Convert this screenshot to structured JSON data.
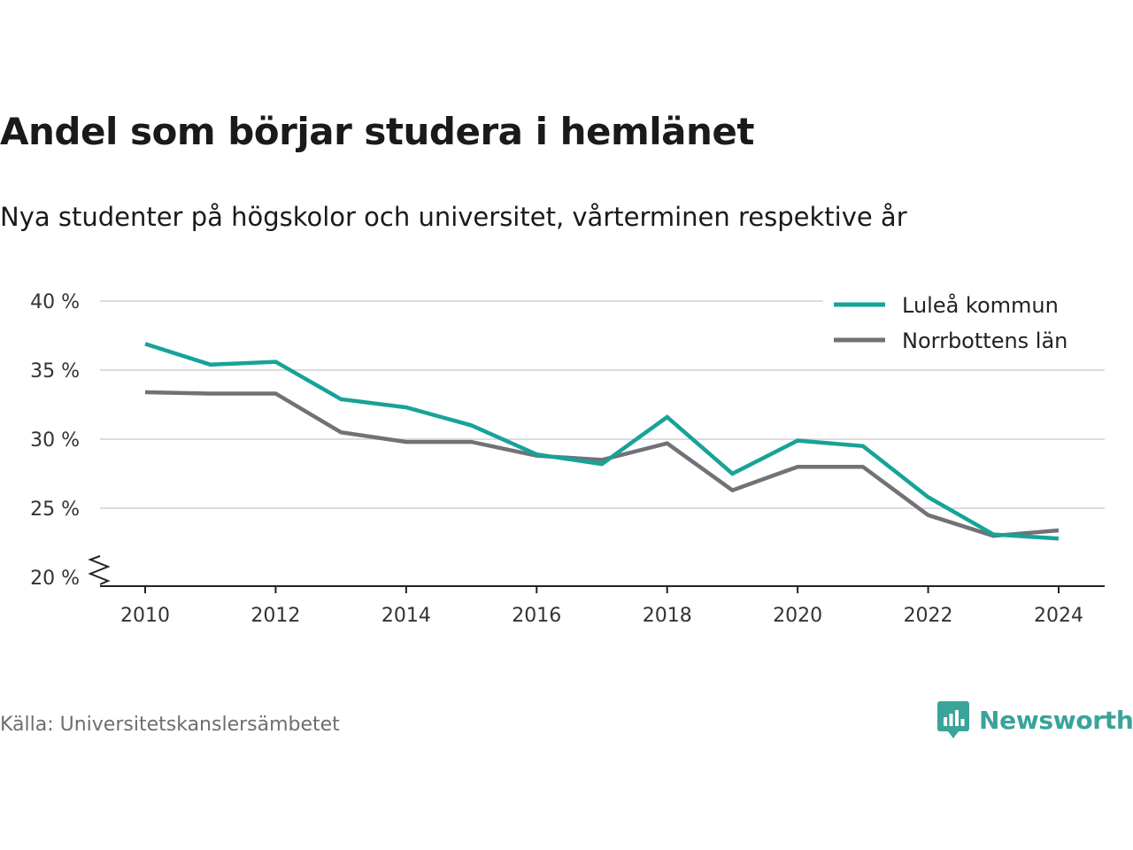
{
  "title": "Andel som börjar studera i hemlänet",
  "subtitle": "Nya studenter på högskolor och universitet, vårterminen respektive år",
  "source": "Källa: Universitetskanslersämbetet",
  "brand": {
    "name": "Newsworthy",
    "icon": "newsworthy-logo-icon",
    "color": "#3aa39a"
  },
  "chart_data": {
    "type": "line",
    "x": [
      2010,
      2011,
      2012,
      2013,
      2014,
      2015,
      2016,
      2017,
      2018,
      2019,
      2020,
      2021,
      2022,
      2023,
      2024
    ],
    "series": [
      {
        "name": "Luleå kommun",
        "color": "#17a398",
        "values": [
          36.9,
          35.4,
          35.6,
          32.9,
          32.3,
          31.0,
          28.9,
          28.2,
          31.6,
          27.5,
          29.9,
          29.5,
          25.8,
          23.1,
          22.8
        ]
      },
      {
        "name": "Norrbottens län",
        "color": "#717177",
        "values": [
          33.4,
          33.3,
          33.3,
          30.5,
          29.8,
          29.8,
          28.8,
          28.5,
          29.7,
          26.3,
          28.0,
          28.0,
          24.5,
          23.0,
          23.4
        ]
      }
    ],
    "xticks": [
      2010,
      2012,
      2014,
      2016,
      2018,
      2020,
      2022,
      2024
    ],
    "yticks": [
      20,
      25,
      30,
      35,
      40
    ],
    "ytick_labels": [
      "20 %",
      "25 %",
      "30 %",
      "35 %",
      "40 %"
    ],
    "ylim": [
      20,
      40
    ],
    "xlim": [
      2009.3,
      2024.7
    ],
    "y_axis_break": true,
    "grid": "horizontal",
    "legend": "top-right",
    "xlabel": "",
    "ylabel": ""
  }
}
